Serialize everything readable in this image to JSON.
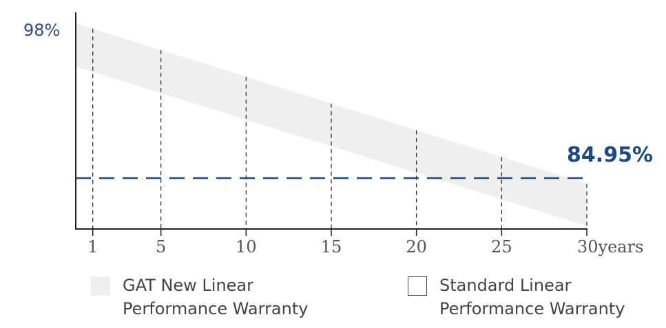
{
  "chart_data": {
    "type": "area",
    "x": [
      1,
      5,
      10,
      15,
      20,
      25,
      30
    ],
    "x_tick_labels": [
      "1",
      "5",
      "10",
      "15",
      "20",
      "25",
      "30years"
    ],
    "xlim": [
      0,
      30
    ],
    "ylim": [
      80,
      100
    ],
    "y_tick_labels": [
      "98%"
    ],
    "series": [
      {
        "name": "GAT New Linear Performance Warranty",
        "type": "band",
        "color": "#efefef",
        "x_start": 0,
        "x_end": 30,
        "upper": [
          100,
          84.4
        ],
        "lower": [
          95.8,
          80.3
        ]
      },
      {
        "name": "Standard Linear Performance Warranty",
        "type": "dashed-line",
        "color": "#1e4a7e",
        "value": 84.95,
        "label": "84.95%"
      }
    ],
    "grid": "vertical dashed at x ticks",
    "legend_position": "bottom"
  },
  "legend": {
    "items": [
      {
        "lines": [
          "GAT New Linear",
          "Performance Warranty"
        ],
        "swatch_color": "#efefef",
        "swatch_style": "filled"
      },
      {
        "lines": [
          "Standard Linear",
          "Performance Warranty"
        ],
        "swatch_color": "#444444",
        "swatch_style": "outline"
      }
    ]
  }
}
